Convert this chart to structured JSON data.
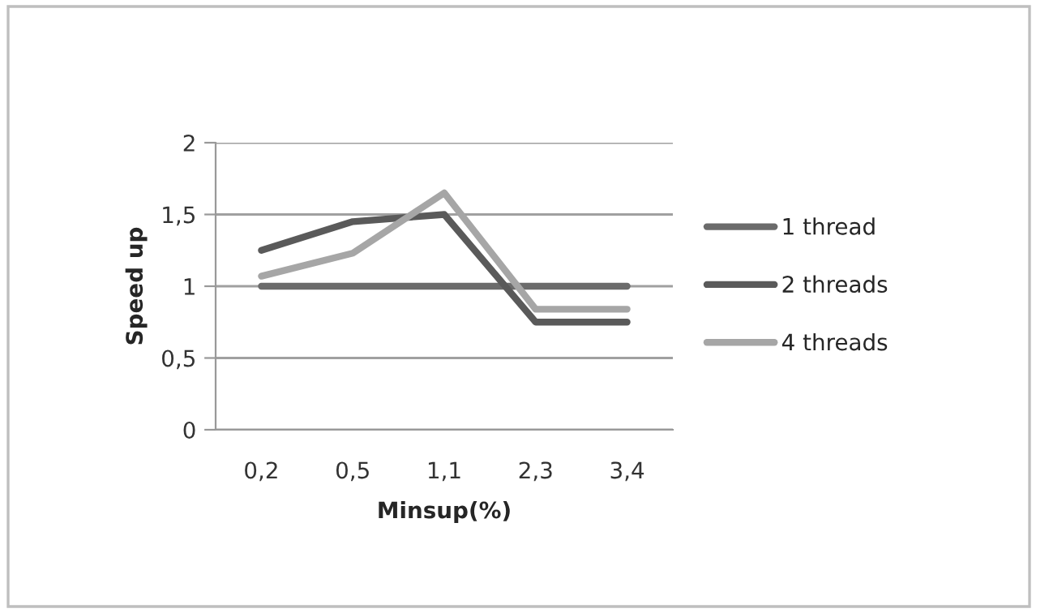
{
  "chart_data": {
    "type": "line",
    "xlabel": "Minsup(%)",
    "ylabel": "Speed up",
    "categories": [
      "0,2",
      "0,5",
      "1,1",
      "2,3",
      "3,4"
    ],
    "series": [
      {
        "name": "1 thread",
        "color": "#6b6b6b",
        "values": [
          1,
          1,
          1,
          1,
          1
        ]
      },
      {
        "name": "2 threads",
        "color": "#5a5a5a",
        "values": [
          1.25,
          1.45,
          1.5,
          0.75,
          0.75
        ]
      },
      {
        "name": "4 threads",
        "color": "#a6a6a6",
        "values": [
          1.07,
          1.23,
          1.65,
          0.84,
          0.84
        ]
      }
    ],
    "ylim": [
      0,
      2
    ],
    "yticks": [
      {
        "value": 0,
        "label": "0"
      },
      {
        "value": 0.5,
        "label": "0,5"
      },
      {
        "value": 1,
        "label": "1"
      },
      {
        "value": 1.5,
        "label": "1,5"
      },
      {
        "value": 2,
        "label": "2"
      }
    ],
    "grid": "y",
    "legend": "right",
    "marker": "none",
    "line_style": "solid"
  }
}
